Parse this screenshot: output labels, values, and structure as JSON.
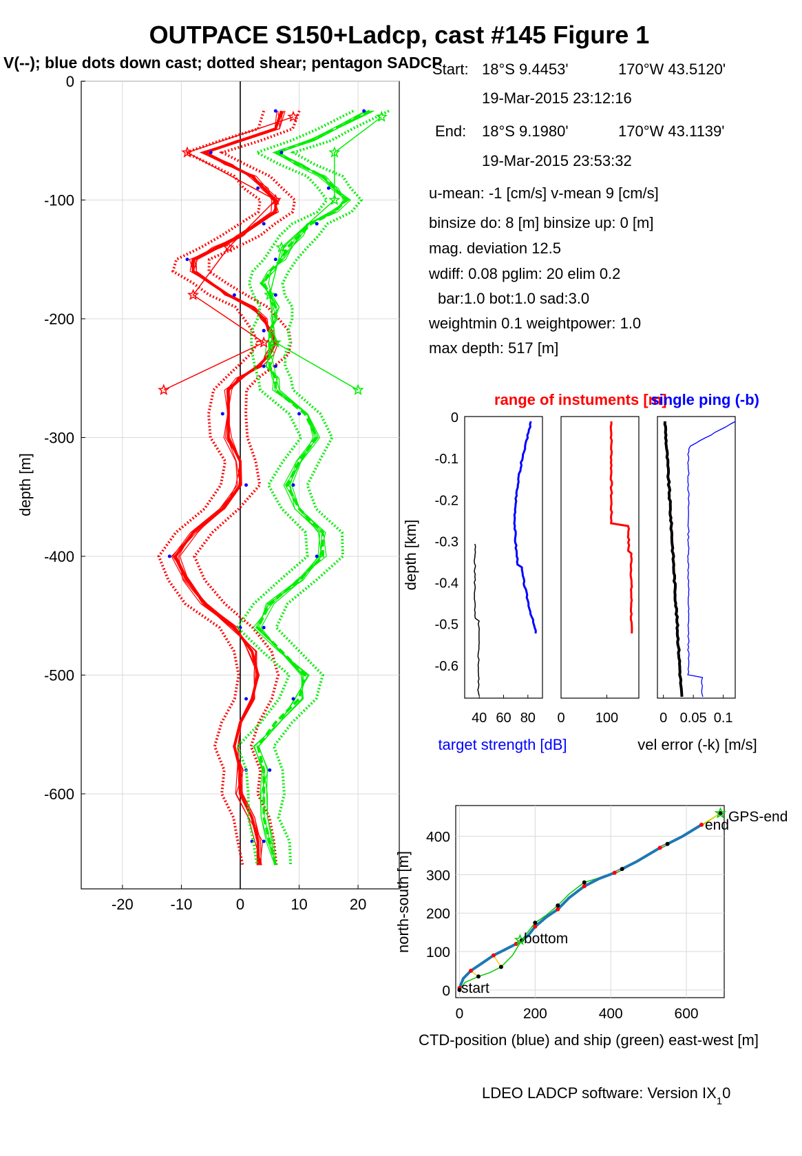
{
  "title": "OUTPACE S150+Ladcp, cast #145  Figure 1",
  "subtitle": "V(--); blue dots down cast; dotted shear; pentagon SADCP",
  "colors": {
    "u": "#ff0000",
    "v": "#00ee00",
    "dots": "#0000ff",
    "black": "#000000",
    "ctd": "#1f77b4",
    "ship": "#00cc00"
  },
  "info": {
    "start_lbl": "Start:",
    "start_lat": "18°S  9.4453'",
    "start_lon": "170°W 43.5120'",
    "start_time": "19-Mar-2015 23:12:16",
    "end_lbl": "End:",
    "end_lat": "18°S  9.1980'",
    "end_lon": "170°W 43.1139'",
    "end_time": "19-Mar-2015 23:53:32",
    "mean": "u-mean:  -1 [cm/s]    v-mean   9 [cm/s]",
    "binsize": "binsize do: 8 [m]  binsize up:  0 [m]",
    "mag": "mag. deviation 12.5",
    "wdiff": "wdiff: 0.08  pglim: 20  elim 0.2",
    "bar": "bar:1.0 bot:1.0 sad:3.0",
    "weight": "weightmin 0.1  weightpower: 1.0",
    "maxdepth": "max depth: 517 [m]"
  },
  "footer": "LDEO LADCP software: Version IX",
  "footer_sub": "1",
  "footer_tail": "0",
  "chart_data": [
    {
      "type": "line",
      "name": "velocity profile",
      "xlabel": "",
      "ylabel": "depth [m]",
      "xlim": [
        -27,
        27
      ],
      "ylim": [
        -680,
        0
      ],
      "xticks": [
        -20,
        -10,
        0,
        10,
        20
      ],
      "yticks": [
        0,
        -100,
        -200,
        -300,
        -400,
        -500,
        -600
      ],
      "grid": true,
      "series": [
        {
          "color": "red",
          "style": "solid",
          "depth": [
            25,
            40,
            50,
            60,
            70,
            80,
            90,
            100,
            110,
            120,
            130,
            140,
            150,
            160,
            170,
            180,
            190,
            200,
            210,
            220,
            230,
            240,
            250,
            260,
            280,
            300,
            320,
            340,
            360,
            380,
            400,
            420,
            440,
            460,
            480,
            500,
            520,
            540,
            560,
            580,
            600,
            620,
            640,
            660
          ],
          "x": [
            7,
            6,
            0,
            -6,
            -2,
            2,
            4,
            6,
            6,
            3,
            0,
            -4,
            -8,
            -8,
            -5,
            -2,
            2,
            4,
            5,
            6,
            5,
            3,
            0,
            -2,
            -2,
            -2,
            0,
            0,
            -3,
            -8,
            -11,
            -9,
            -6,
            -1,
            2,
            3,
            2,
            0,
            -1,
            0,
            0,
            2,
            3,
            3
          ]
        },
        {
          "color": "green",
          "style": "solid",
          "depth": [
            25,
            40,
            50,
            60,
            70,
            80,
            90,
            100,
            110,
            120,
            130,
            140,
            150,
            160,
            170,
            180,
            190,
            200,
            210,
            220,
            230,
            240,
            250,
            260,
            280,
            300,
            320,
            340,
            360,
            380,
            400,
            420,
            440,
            460,
            480,
            500,
            520,
            540,
            560,
            580,
            600,
            620,
            640,
            660
          ],
          "x": [
            22,
            16,
            12,
            6,
            10,
            14,
            16,
            18,
            16,
            12,
            10,
            8,
            7,
            5,
            4,
            5,
            6,
            6,
            5,
            5,
            5,
            5,
            6,
            6,
            11,
            13,
            10,
            8,
            10,
            14,
            14,
            10,
            5,
            3,
            7,
            11,
            10,
            6,
            3,
            4,
            4,
            4,
            5,
            6
          ]
        }
      ],
      "sadcp": {
        "depth": [
          30,
          60,
          100,
          140,
          180,
          220,
          260
        ],
        "u": [
          9,
          -9,
          6,
          -2,
          -8,
          4,
          -13
        ],
        "v": [
          24,
          16,
          16,
          7,
          5,
          6,
          20
        ]
      }
    },
    {
      "type": "line",
      "name": "instrument panels",
      "title": "range of instuments [m]",
      "title2": "single ping (-b)",
      "ylabel": "depth [km]",
      "ylim": [
        -0.68,
        0
      ],
      "yticks": [
        0,
        -0.1,
        -0.2,
        -0.3,
        -0.4,
        -0.5,
        -0.6
      ],
      "panels": [
        {
          "xlabel": "target strength [dB]",
          "xticks": [
            "40",
            "60",
            "80"
          ],
          "xlim": [
            28,
            92
          ]
        },
        {
          "xlabel": "",
          "xticks": [
            "0",
            "100"
          ],
          "xlim": [
            0,
            170
          ]
        },
        {
          "xlabel": "vel error (-k) [m/s]",
          "xticks": [
            "0",
            "0.05",
            "0.1"
          ],
          "xlim": [
            -0.01,
            0.12
          ]
        }
      ]
    },
    {
      "type": "line",
      "name": "ship track",
      "xlabel": "CTD-position (blue) and ship (green) east-west [m]",
      "ylabel": "north-south [m]",
      "xlim": [
        -10,
        700
      ],
      "ylim": [
        -20,
        480
      ],
      "xticks": [
        0,
        200,
        400,
        600
      ],
      "yticks": [
        0,
        100,
        200,
        300,
        400
      ],
      "annotations": [
        "start",
        "bottom",
        "end",
        "GPS-end"
      ],
      "ctd": {
        "x": [
          0,
          10,
          30,
          60,
          90,
          120,
          150,
          180,
          200,
          230,
          260,
          290,
          330,
          370,
          410,
          470,
          530,
          590,
          640
        ],
        "y": [
          5,
          30,
          50,
          70,
          90,
          105,
          120,
          140,
          165,
          190,
          210,
          240,
          270,
          290,
          305,
          335,
          370,
          400,
          430
        ]
      },
      "ship": {
        "x": [
          0,
          15,
          50,
          80,
          110,
          140,
          165,
          180,
          200,
          230,
          260,
          290,
          330,
          380,
          430,
          490,
          550,
          610,
          690
        ],
        "y": [
          0,
          20,
          35,
          45,
          60,
          90,
          130,
          150,
          175,
          195,
          220,
          250,
          280,
          295,
          315,
          345,
          380,
          410,
          460
        ]
      }
    }
  ]
}
